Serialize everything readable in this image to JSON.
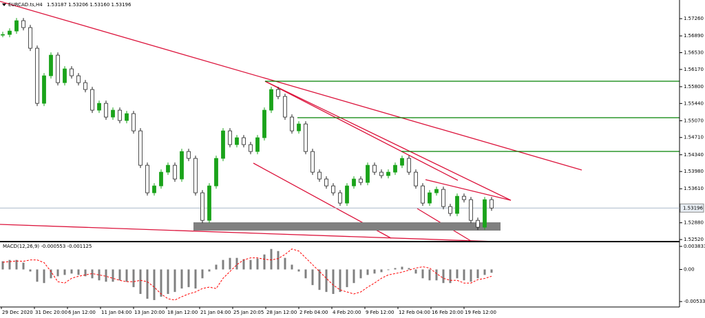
{
  "chart_data": [
    {
      "type": "candlestick",
      "title": "EURCAD.ts,H4",
      "subtitle": "1.53187 1.53206 1.53160 1.53196",
      "up_color": "#1aa31a",
      "down_color": "#222222",
      "values": [
        1.5692,
        1.56994,
        1.57216,
        1.57068,
        1.56625,
        1.55443,
        1.56034,
        1.56477,
        1.55886,
        1.56182,
        1.56034,
        1.55886,
        1.55739,
        1.55296,
        1.55443,
        1.55148,
        1.55296,
        1.55074,
        1.55222,
        1.54852,
        1.54114,
        1.53523,
        1.53671,
        1.53966,
        1.54114,
        1.53819,
        1.54409,
        1.54262,
        1.53523,
        1.52932,
        1.53671,
        1.54262,
        1.54852,
        1.54557,
        1.54705,
        1.54557,
        1.54409,
        1.54705,
        1.55296,
        1.55739,
        1.55591,
        1.55148,
        1.54852,
        1.55,
        1.54409,
        1.53966,
        1.53819,
        1.53671,
        1.53523,
        1.53302,
        1.53671,
        1.53819,
        1.53745,
        1.54114,
        1.53966,
        1.53892,
        1.53966,
        1.54114,
        1.54262,
        1.53966,
        1.53671,
        1.53302,
        1.53523,
        1.53597,
        1.53228,
        1.5308,
        1.53449,
        1.53376,
        1.52932,
        1.52785,
        1.53376,
        1.53196
      ],
      "last_price": {
        "value": 1.53196,
        "label": "1.53196"
      },
      "ylim": [
        1.52476,
        1.5766
      ],
      "yticks": [
        {
          "value": 1.5726,
          "label": "1.57260"
        },
        {
          "value": 1.5689,
          "label": "1.56890"
        },
        {
          "value": 1.5653,
          "label": "1.56530"
        },
        {
          "value": 1.5617,
          "label": "1.56170"
        },
        {
          "value": 1.558,
          "label": "1.55800"
        },
        {
          "value": 1.5544,
          "label": "1.55440"
        },
        {
          "value": 1.5507,
          "label": "1.55070"
        },
        {
          "value": 1.5471,
          "label": "1.54710"
        },
        {
          "value": 1.5434,
          "label": "1.54340"
        },
        {
          "value": 1.5398,
          "label": "1.53980"
        },
        {
          "value": 1.5361,
          "label": "1.53610"
        },
        {
          "value": 1.5288,
          "label": "1.52880"
        },
        {
          "value": 1.5252,
          "label": "1.52520"
        }
      ]
    },
    {
      "type": "macd",
      "title": "MACD(12,26,9) -0.000553 -0.001125",
      "series": [
        {
          "name": "MACD",
          "color": "#808080",
          "values": [
            0.00136,
            0.00158,
            0.00158,
            0.00113,
            -0.00034,
            -0.00204,
            -0.00226,
            -0.00147,
            -0.00113,
            -0.00091,
            -0.00068,
            -0.00091,
            -0.00113,
            -0.00147,
            -0.00181,
            -0.00204,
            -0.00204,
            -0.00181,
            -0.00204,
            -0.00294,
            -0.00407,
            -0.00487,
            -0.00509,
            -0.00453,
            -0.00407,
            -0.00374,
            -0.00317,
            -0.00294,
            -0.00317,
            -0.00147,
            -0.00034,
            0.00079,
            0.00158,
            0.00192,
            0.00192,
            0.0017,
            0.00158,
            0.00181,
            0.00249,
            0.0034,
            0.00306,
            0.00192,
            0.00079,
            -0.00034,
            -0.00147,
            -0.0026,
            -0.0034,
            -0.00374,
            -0.00407,
            -0.00374,
            -0.00294,
            -0.00226,
            -0.00147,
            -0.00091,
            -0.00068,
            -0.00045,
            -0.00011,
            0.00023,
            0.00045,
            0.00023,
            -0.00068,
            -0.00147,
            -0.00181,
            -0.00181,
            -0.00226,
            -0.00226,
            -0.00147,
            -0.00181,
            -0.00204,
            -0.00147,
            -0.00091,
            -0.00055
          ]
        },
        {
          "name": "Signal",
          "color": "#ff0000",
          "values": [
            0.0012,
            0.0013,
            0.0014,
            0.00136,
            0.00158,
            0.00158,
            0.00113,
            -0.00034,
            -0.00204,
            -0.00226,
            -0.00147,
            -0.00113,
            -0.00091,
            -0.00068,
            -0.00091,
            -0.00113,
            -0.00147,
            -0.00181,
            -0.00204,
            -0.00204,
            -0.00181,
            -0.00204,
            -0.00294,
            -0.00407,
            -0.00487,
            -0.00509,
            -0.00453,
            -0.00407,
            -0.00374,
            -0.00317,
            -0.00294,
            -0.00317,
            -0.00147,
            -0.00034,
            0.00079,
            0.00158,
            0.00192,
            0.00192,
            0.0017,
            0.00158,
            0.00181,
            0.00249,
            0.0034,
            0.00306,
            0.00192,
            0.00079,
            -0.00034,
            -0.00147,
            -0.0026,
            -0.0034,
            -0.00374,
            -0.00407,
            -0.00374,
            -0.00294,
            -0.00226,
            -0.00147,
            -0.00091,
            -0.00068,
            -0.00045,
            -0.00011,
            0.00023,
            0.00045,
            0.00023,
            -0.00068,
            -0.00147,
            -0.00181,
            -0.00181,
            -0.00226,
            -0.00226,
            -0.0017,
            -0.0015,
            -0.00113
          ]
        }
      ],
      "ylim": [
        -0.00624,
        0.0044
      ],
      "yticks": [
        0.003833,
        {
          "value": 0,
          "label": "0.00"
        },
        -0.005336
      ]
    }
  ],
  "time_labels": [
    "29 Dec 2020",
    "31 Dec 20:00",
    "6 Jan 12:00",
    "11 Jan 04:00",
    "13 Jan 20:00",
    "18 Jan 12:00",
    "21 Jan 04:00",
    "25 Jan 20:05",
    "28 Jan 12:00",
    "2 Feb 04:00",
    "4 Feb 20:00",
    "9 Feb 12:00",
    "12 Feb 04:00",
    "16 Feb 20:00",
    "19 Feb 12:00"
  ]
}
